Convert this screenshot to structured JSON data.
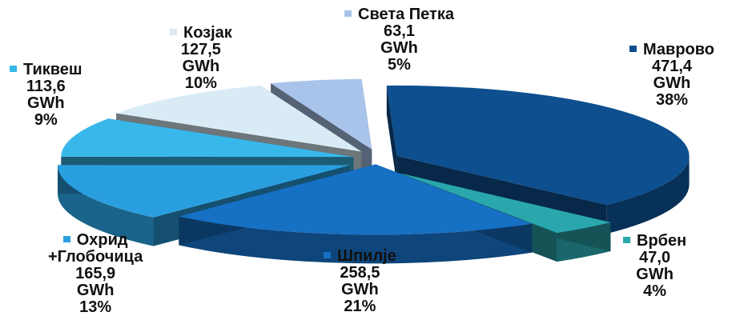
{
  "chart_data": {
    "type": "pie",
    "unit": "GWh",
    "slices": [
      {
        "name": "Маврово",
        "value_text": "471,4",
        "value": 471.4,
        "percent": "38%",
        "color": "#0d4f8f"
      },
      {
        "name": "Врбен",
        "value_text": "47,0",
        "value": 47.0,
        "percent": "4%",
        "color": "#2aa6ad"
      },
      {
        "name": "Шпилје",
        "value_text": "258,5",
        "value": 258.5,
        "percent": "21%",
        "color": "#1670c4"
      },
      {
        "name": "Охрид",
        "name2": "+Глобочица",
        "value_text": "165,9",
        "value": 165.9,
        "percent": "13%",
        "color": "#2a9fdf"
      },
      {
        "name": "Тиквеш",
        "value_text": "113,6",
        "value": 113.6,
        "percent": "9%",
        "color": "#38b8ea"
      },
      {
        "name": "Козјак",
        "value_text": "127,5",
        "value": 127.5,
        "percent": "10%",
        "color": "#d9ecf6"
      },
      {
        "name": "Света Петка",
        "value_text": "63,1",
        "value": 63.1,
        "percent": "5%",
        "color": "#a9c4ea"
      }
    ]
  }
}
